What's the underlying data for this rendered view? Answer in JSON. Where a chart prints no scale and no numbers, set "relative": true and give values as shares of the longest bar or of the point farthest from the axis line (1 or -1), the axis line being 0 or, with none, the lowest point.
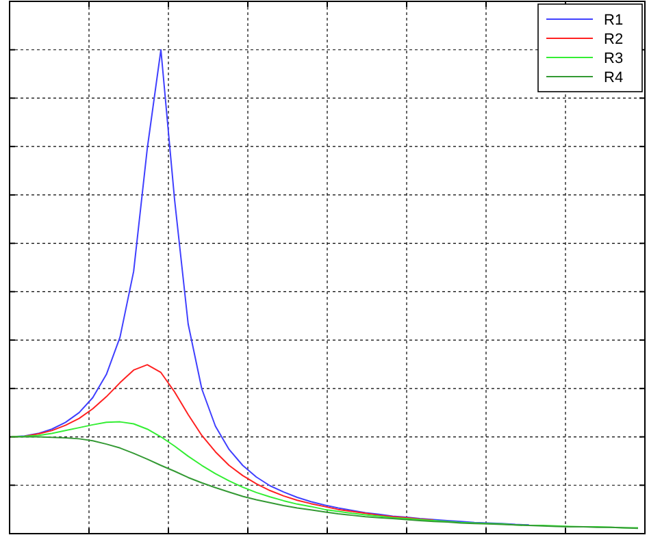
{
  "chart_data": {
    "type": "line",
    "relative": true,
    "grid": true,
    "legend": "top right",
    "line_style": "solid",
    "categories": [
      null,
      null,
      null,
      null,
      null,
      null,
      null,
      null,
      null,
      null,
      null,
      null,
      null,
      null,
      null,
      null,
      null,
      null,
      null,
      null,
      null,
      null,
      null,
      null,
      null,
      null,
      null,
      null,
      null,
      null,
      null,
      null,
      null,
      null,
      null,
      null,
      null,
      null,
      null,
      null,
      null,
      null,
      null,
      null,
      null,
      null,
      null
    ],
    "series": [
      {
        "name": "R1",
        "color": "#3f3fff",
        "values": [
          0.2,
          0.202,
          0.207,
          0.216,
          0.23,
          0.25,
          0.281,
          0.329,
          0.406,
          0.542,
          0.796,
          1.0,
          0.691,
          0.433,
          0.299,
          0.222,
          0.174,
          0.141,
          0.117,
          0.099,
          0.086,
          0.075,
          0.066,
          0.059,
          0.053,
          0.048,
          0.043,
          0.04,
          0.036,
          0.034,
          0.031,
          0.029,
          0.027,
          0.025,
          0.023,
          0.022,
          0.021,
          0.019,
          0.018,
          null,
          null,
          null,
          null,
          null,
          null,
          null,
          null
        ]
      },
      {
        "name": "R2",
        "color": "#ff2020",
        "values": [
          0.2,
          0.201,
          0.206,
          0.213,
          0.224,
          0.238,
          0.258,
          0.283,
          0.312,
          0.338,
          0.349,
          0.333,
          0.293,
          0.246,
          0.203,
          0.169,
          0.141,
          0.12,
          0.103,
          0.089,
          0.078,
          0.069,
          0.062,
          0.056,
          0.05,
          0.046,
          0.042,
          0.038,
          0.035,
          0.033,
          0.03,
          0.028,
          null,
          null,
          null,
          null,
          null,
          null,
          null,
          null,
          null,
          null,
          null,
          null,
          null,
          null,
          null
        ]
      },
      {
        "name": "R3",
        "color": "#33ee33",
        "values": [
          0.2,
          0.201,
          0.203,
          0.207,
          0.213,
          0.219,
          0.225,
          0.23,
          0.231,
          0.227,
          0.216,
          0.2,
          0.181,
          0.16,
          0.141,
          0.124,
          0.109,
          0.096,
          0.085,
          0.076,
          0.068,
          0.061,
          0.056,
          0.05,
          0.046,
          0.042,
          0.039,
          0.036,
          0.033,
          0.031,
          0.029,
          0.027,
          0.025,
          0.023,
          0.022,
          0.021,
          0.02,
          0.018,
          0.017,
          0.017,
          0.016,
          0.015,
          0.014,
          0.014,
          0.013,
          0.012,
          0.012
        ]
      },
      {
        "name": "R4",
        "color": "#339933",
        "values": [
          0.2,
          0.2,
          0.2,
          0.199,
          0.198,
          0.196,
          0.192,
          0.185,
          0.177,
          0.166,
          0.154,
          0.141,
          0.129,
          0.116,
          0.105,
          0.095,
          0.086,
          0.077,
          0.07,
          0.064,
          0.058,
          0.053,
          0.049,
          0.045,
          0.041,
          0.038,
          0.035,
          0.033,
          0.031,
          0.029,
          0.027,
          0.025,
          0.024,
          0.022,
          0.021,
          0.02,
          0.019,
          0.018,
          0.017,
          0.016,
          0.015,
          0.014,
          0.014,
          0.013,
          0.013,
          0.012,
          0.011
        ]
      }
    ]
  }
}
